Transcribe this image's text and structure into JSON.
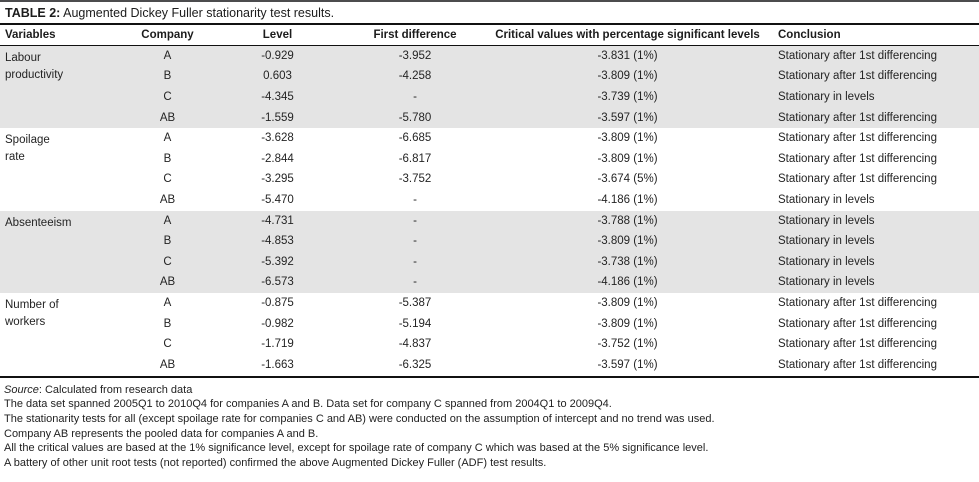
{
  "table": {
    "title_label": "TABLE 2:",
    "title_text": " Augmented Dickey Fuller stationarity test results.",
    "columns": [
      "Variables",
      "Company",
      "Level",
      "First difference",
      "Critical values with percentage significant levels",
      "Conclusion"
    ],
    "groups": [
      {
        "variable": "Labour\nproductivity",
        "rows": [
          {
            "company": "A",
            "level": "-0.929",
            "first_difference": "-3.952",
            "critical_value": "-3.831 (1%)",
            "conclusion": "Stationary after 1st differencing"
          },
          {
            "company": "B",
            "level": "0.603",
            "first_difference": "-4.258",
            "critical_value": "-3.809 (1%)",
            "conclusion": "Stationary after 1st differencing"
          },
          {
            "company": "C",
            "level": "-4.345",
            "first_difference": "-",
            "critical_value": "-3.739 (1%)",
            "conclusion": "Stationary in levels"
          },
          {
            "company": "AB",
            "level": "-1.559",
            "first_difference": "-5.780",
            "critical_value": "-3.597 (1%)",
            "conclusion": "Stationary after 1st differencing"
          }
        ]
      },
      {
        "variable": "Spoilage\nrate",
        "rows": [
          {
            "company": "A",
            "level": "-3.628",
            "first_difference": "-6.685",
            "critical_value": "-3.809 (1%)",
            "conclusion": "Stationary after 1st differencing"
          },
          {
            "company": "B",
            "level": "-2.844",
            "first_difference": "-6.817",
            "critical_value": "-3.809 (1%)",
            "conclusion": "Stationary after 1st differencing"
          },
          {
            "company": "C",
            "level": "-3.295",
            "first_difference": "-3.752",
            "critical_value": "-3.674 (5%)",
            "conclusion": "Stationary after 1st differencing"
          },
          {
            "company": "AB",
            "level": "-5.470",
            "first_difference": "-",
            "critical_value": "-4.186 (1%)",
            "conclusion": "Stationary in levels"
          }
        ]
      },
      {
        "variable": "Absenteeism",
        "rows": [
          {
            "company": "A",
            "level": "-4.731",
            "first_difference": "-",
            "critical_value": "-3.788 (1%)",
            "conclusion": "Stationary in levels"
          },
          {
            "company": "B",
            "level": "-4.853",
            "first_difference": "-",
            "critical_value": "-3.809 (1%)",
            "conclusion": "Stationary in levels"
          },
          {
            "company": "C",
            "level": "-5.392",
            "first_difference": "-",
            "critical_value": "-3.738 (1%)",
            "conclusion": "Stationary in levels"
          },
          {
            "company": "AB",
            "level": "-6.573",
            "first_difference": "-",
            "critical_value": "-4.186 (1%)",
            "conclusion": "Stationary in levels"
          }
        ]
      },
      {
        "variable": "Number of\nworkers",
        "rows": [
          {
            "company": "A",
            "level": "-0.875",
            "first_difference": "-5.387",
            "critical_value": "-3.809 (1%)",
            "conclusion": "Stationary after 1st differencing"
          },
          {
            "company": "B",
            "level": "-0.982",
            "first_difference": "-5.194",
            "critical_value": "-3.809 (1%)",
            "conclusion": "Stationary after 1st differencing"
          },
          {
            "company": "C",
            "level": "-1.719",
            "first_difference": "-4.837",
            "critical_value": "-3.752 (1%)",
            "conclusion": "Stationary after 1st differencing"
          },
          {
            "company": "AB",
            "level": "-1.663",
            "first_difference": "-6.325",
            "critical_value": "-3.597 (1%)",
            "conclusion": "Stationary after 1st differencing"
          }
        ]
      }
    ]
  },
  "notes": {
    "source_label": "Source",
    "source_text": ": Calculated from research data",
    "lines": [
      "The data set spanned 2005Q1 to 2010Q4 for companies A and B. Data set for company C spanned from 2004Q1 to 2009Q4.",
      "The stationarity tests for all (except spoilage rate for companies C and AB) were conducted on the assumption of intercept and no trend was used.",
      "Company AB represents the pooled data for companies A and B.",
      "All the critical values are based at the 1% significance level, except for spoilage rate of company C which was based at the 5% significance level.",
      "A battery of other unit root tests (not reported) confirmed the above Augmented Dickey Fuller (ADF) test results."
    ]
  },
  "colors": {
    "stripe": "#e4e4e4",
    "rule": "#111111",
    "text": "#222222"
  }
}
